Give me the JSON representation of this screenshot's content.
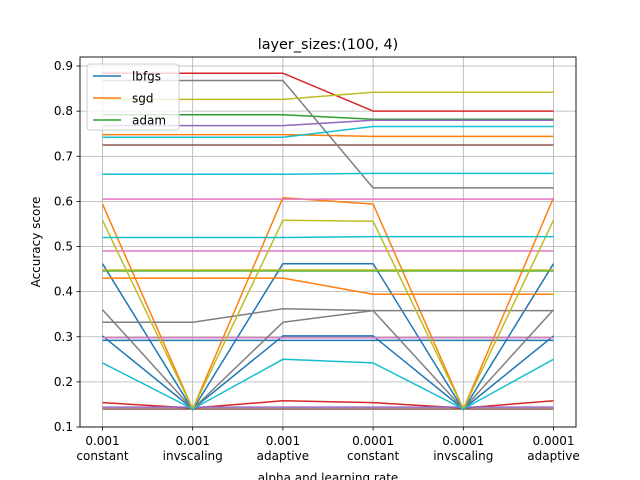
{
  "chart_data": {
    "type": "line",
    "title": "layer_sizes:(100, 4)",
    "xlabel": "alpha and learning rate",
    "ylabel": "Accuracy score",
    "ylim": [
      0.1,
      0.92
    ],
    "yticks": [
      "0.1",
      "0.2",
      "0.3",
      "0.4",
      "0.5",
      "0.6",
      "0.7",
      "0.8",
      "0.9"
    ],
    "categories": [
      {
        "alpha": "0.001",
        "lr": "constant"
      },
      {
        "alpha": "0.001",
        "lr": "invscaling"
      },
      {
        "alpha": "0.001",
        "lr": "adaptive"
      },
      {
        "alpha": "0.0001",
        "lr": "constant"
      },
      {
        "alpha": "0.0001",
        "lr": "invscaling"
      },
      {
        "alpha": "0.0001",
        "lr": "adaptive"
      }
    ],
    "grid": true,
    "legend": {
      "position": "top-left",
      "entries": [
        {
          "label": "lbfgs",
          "color": "#1f77b4"
        },
        {
          "label": "sgd",
          "color": "#ff7f0e"
        },
        {
          "label": "adam",
          "color": "#2ca02c"
        }
      ]
    },
    "lines": [
      {
        "color": "#1f77b4",
        "values": [
          0.462,
          0.138,
          0.462,
          0.462,
          0.138,
          0.462
        ]
      },
      {
        "color": "#1f77b4",
        "values": [
          0.302,
          0.14,
          0.302,
          0.302,
          0.14,
          0.302
        ]
      },
      {
        "color": "#1f77b4",
        "values": [
          0.292,
          0.292,
          0.292,
          0.292,
          0.292,
          0.292
        ]
      },
      {
        "color": "#ff7f0e",
        "values": [
          0.594,
          0.14,
          0.608,
          0.594,
          0.14,
          0.608
        ]
      },
      {
        "color": "#ff7f0e",
        "values": [
          0.43,
          0.43,
          0.43,
          0.394,
          0.394,
          0.394
        ]
      },
      {
        "color": "#ff7f0e",
        "values": [
          0.748,
          0.748,
          0.748,
          0.744,
          0.744,
          0.744
        ]
      },
      {
        "color": "#2ca02c",
        "values": [
          0.792,
          0.792,
          0.792,
          0.782,
          0.782,
          0.782
        ]
      },
      {
        "color": "#2ca02c",
        "values": [
          0.446,
          0.446,
          0.446,
          0.446,
          0.446,
          0.446
        ]
      },
      {
        "color": "#d62728",
        "values": [
          0.884,
          0.884,
          0.884,
          0.8,
          0.8,
          0.8
        ]
      },
      {
        "color": "#d62728",
        "values": [
          0.154,
          0.142,
          0.158,
          0.154,
          0.142,
          0.158
        ]
      },
      {
        "color": "#9467bd",
        "values": [
          0.768,
          0.768,
          0.768,
          0.78,
          0.78,
          0.78
        ]
      },
      {
        "color": "#9467bd",
        "values": [
          0.144,
          0.144,
          0.144,
          0.144,
          0.144,
          0.144
        ]
      },
      {
        "color": "#8c564b",
        "values": [
          0.725,
          0.725,
          0.725,
          0.725,
          0.725,
          0.725
        ]
      },
      {
        "color": "#8c564b",
        "values": [
          0.14,
          0.14,
          0.14,
          0.14,
          0.14,
          0.14
        ]
      },
      {
        "color": "#e377c2",
        "values": [
          0.605,
          0.605,
          0.605,
          0.605,
          0.605,
          0.605
        ]
      },
      {
        "color": "#e377c2",
        "values": [
          0.49,
          0.49,
          0.49,
          0.49,
          0.49,
          0.49
        ]
      },
      {
        "color": "#e377c2",
        "values": [
          0.298,
          0.298,
          0.298,
          0.298,
          0.298,
          0.298
        ]
      },
      {
        "color": "#7f7f7f",
        "values": [
          0.868,
          0.868,
          0.868,
          0.63,
          0.63,
          0.63
        ]
      },
      {
        "color": "#7f7f7f",
        "values": [
          0.36,
          0.14,
          0.332,
          0.358,
          0.14,
          0.36
        ]
      },
      {
        "color": "#7f7f7f",
        "values": [
          0.332,
          0.332,
          0.362,
          0.358,
          0.358,
          0.358
        ]
      },
      {
        "color": "#bcbd22",
        "values": [
          0.826,
          0.826,
          0.826,
          0.842,
          0.842,
          0.842
        ]
      },
      {
        "color": "#bcbd22",
        "values": [
          0.558,
          0.14,
          0.558,
          0.556,
          0.14,
          0.558
        ]
      },
      {
        "color": "#bcbd22",
        "values": [
          0.448,
          0.448,
          0.448,
          0.448,
          0.448,
          0.448
        ]
      },
      {
        "color": "#17becf",
        "values": [
          0.66,
          0.66,
          0.66,
          0.662,
          0.662,
          0.662
        ]
      },
      {
        "color": "#17becf",
        "values": [
          0.52,
          0.52,
          0.52,
          0.522,
          0.522,
          0.522
        ]
      },
      {
        "color": "#17becf",
        "values": [
          0.242,
          0.14,
          0.25,
          0.242,
          0.14,
          0.25
        ]
      },
      {
        "color": "#17becf",
        "values": [
          0.742,
          0.742,
          0.742,
          0.766,
          0.766,
          0.766
        ]
      }
    ]
  }
}
